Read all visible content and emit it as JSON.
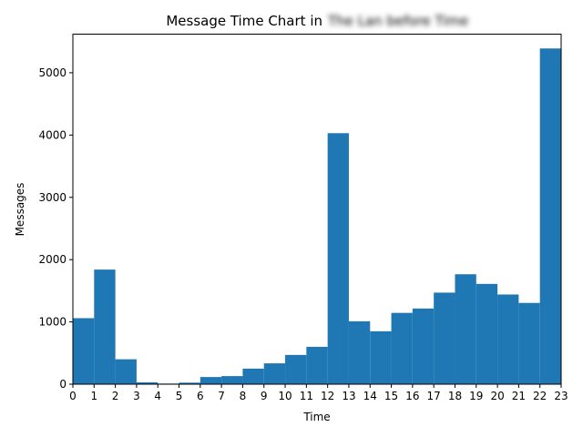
{
  "colors": {
    "bar": "#1f77b4",
    "axis": "#000000",
    "background": "#ffffff"
  },
  "chart_data": {
    "type": "bar",
    "title": "Message Time Chart in",
    "title_redacted": "The Lan before Time",
    "xlabel": "Time",
    "ylabel": "Messages",
    "xlim": [
      0,
      23
    ],
    "ylim": [
      0,
      5620
    ],
    "x_ticks": [
      0,
      1,
      2,
      3,
      4,
      5,
      6,
      7,
      8,
      9,
      10,
      11,
      12,
      13,
      14,
      15,
      16,
      17,
      18,
      19,
      20,
      21,
      22,
      23
    ],
    "y_ticks": [
      0,
      1000,
      2000,
      3000,
      4000,
      5000
    ],
    "bins": [
      {
        "start": 0,
        "end": 1,
        "value": 1060
      },
      {
        "start": 1,
        "end": 2,
        "value": 1840
      },
      {
        "start": 2,
        "end": 3,
        "value": 400
      },
      {
        "start": 3,
        "end": 4,
        "value": 30
      },
      {
        "start": 4,
        "end": 5,
        "value": 10
      },
      {
        "start": 5,
        "end": 6,
        "value": 25
      },
      {
        "start": 6,
        "end": 7,
        "value": 115
      },
      {
        "start": 7,
        "end": 8,
        "value": 130
      },
      {
        "start": 8,
        "end": 9,
        "value": 250
      },
      {
        "start": 9,
        "end": 10,
        "value": 335
      },
      {
        "start": 10,
        "end": 11,
        "value": 470
      },
      {
        "start": 11,
        "end": 12,
        "value": 600
      },
      {
        "start": 12,
        "end": 13,
        "value": 4030
      },
      {
        "start": 13,
        "end": 14,
        "value": 1010
      },
      {
        "start": 14,
        "end": 15,
        "value": 850
      },
      {
        "start": 15,
        "end": 16,
        "value": 1145
      },
      {
        "start": 16,
        "end": 17,
        "value": 1215
      },
      {
        "start": 17,
        "end": 18,
        "value": 1470
      },
      {
        "start": 18,
        "end": 19,
        "value": 1765
      },
      {
        "start": 19,
        "end": 20,
        "value": 1610
      },
      {
        "start": 20,
        "end": 21,
        "value": 1440
      },
      {
        "start": 21,
        "end": 22,
        "value": 1305
      },
      {
        "start": 22,
        "end": 23,
        "value": 5390
      }
    ]
  }
}
